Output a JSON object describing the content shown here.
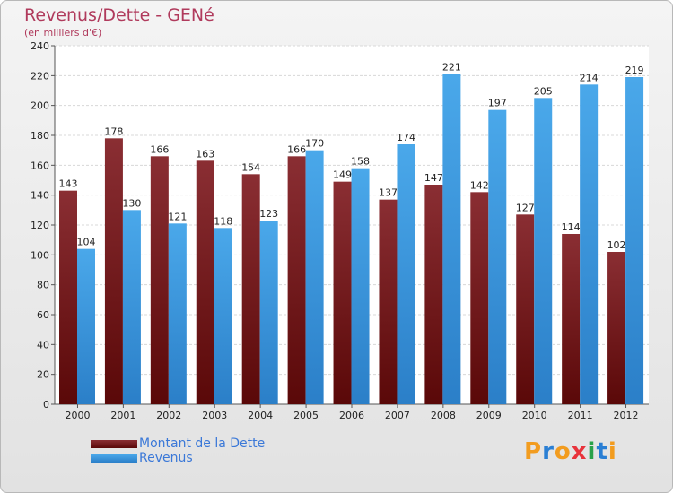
{
  "title": "Revenus/Dette - GENé",
  "subtitle": "(en milliers d'€)",
  "colors": {
    "dette": "#7a1a1a",
    "revenus": "#3a9be0",
    "title": "#b03a5c",
    "legend_text": "#3a78d8"
  },
  "logo": {
    "letters": [
      "P",
      "r",
      "o",
      "x",
      "i",
      "t",
      "i"
    ],
    "colors": [
      "#f29c1f",
      "#2a7fd4",
      "#f29c1f",
      "#e8343c",
      "#2aa24a",
      "#2a7fd4",
      "#f29c1f"
    ],
    "icon": "proxiti-logo"
  },
  "chart_data": {
    "type": "bar",
    "title": "Revenus/Dette - GENé",
    "subtitle": "(en milliers d'€)",
    "categories": [
      "2000",
      "2001",
      "2002",
      "2003",
      "2004",
      "2005",
      "2006",
      "2007",
      "2008",
      "2009",
      "2010",
      "2011",
      "2012"
    ],
    "series": [
      {
        "name": "Montant de la Dette",
        "values": [
          143,
          178,
          166,
          163,
          154,
          166,
          149,
          137,
          147,
          142,
          127,
          114,
          102
        ]
      },
      {
        "name": "Revenus",
        "values": [
          104,
          130,
          121,
          118,
          123,
          170,
          158,
          174,
          221,
          197,
          205,
          214,
          219
        ]
      }
    ],
    "yticks": [
      "0",
      "20",
      "40",
      "60",
      "80",
      "100",
      "120",
      "140",
      "160",
      "180",
      "200",
      "220",
      "240"
    ],
    "ylim": [
      0,
      240
    ],
    "grid": true,
    "legend_position": "bottom-left"
  }
}
